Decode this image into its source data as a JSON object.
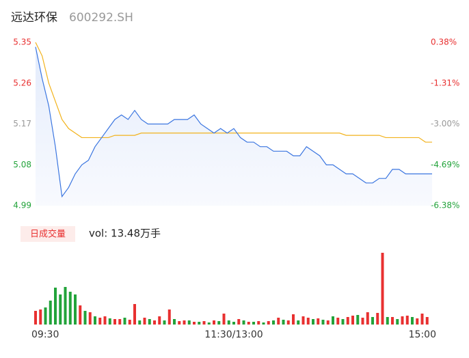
{
  "chart_data": [
    {
      "type": "line",
      "title": "远达环保",
      "subtitle": "600292.SH",
      "x": [
        0,
        4,
        8,
        12,
        16,
        20,
        24,
        28,
        32,
        36,
        40,
        44,
        48,
        52,
        56,
        60,
        64,
        68,
        72,
        76,
        80,
        84,
        88,
        92,
        96,
        100,
        104,
        108,
        112,
        116,
        120,
        124,
        128,
        132,
        136,
        140,
        144,
        148,
        152,
        156,
        160,
        164,
        168,
        172,
        176,
        180,
        184,
        188,
        192,
        196,
        200,
        204,
        208,
        212,
        216,
        220,
        224,
        228,
        232,
        236,
        240
      ],
      "xlim": [
        0,
        240
      ],
      "ylim": [
        4.99,
        5.35
      ],
      "yticks": [
        5.35,
        5.26,
        5.17,
        5.08,
        4.99
      ],
      "y2lim": [
        -6.38,
        0.38
      ],
      "y2ticks": [
        {
          "value": 0.38,
          "label": "0.38%"
        },
        {
          "value": -1.31,
          "label": "-1.31%"
        },
        {
          "value": -3.0,
          "label": "-3.00%"
        },
        {
          "value": -4.69,
          "label": "-4.69%"
        },
        {
          "value": -6.38,
          "label": "-6.38%"
        }
      ],
      "series": [
        {
          "color": "#3a75e0",
          "values": [
            5.34,
            5.27,
            5.21,
            5.12,
            5.01,
            5.03,
            5.06,
            5.08,
            5.09,
            5.12,
            5.14,
            5.16,
            5.18,
            5.19,
            5.18,
            5.2,
            5.18,
            5.17,
            5.17,
            5.17,
            5.17,
            5.18,
            5.18,
            5.18,
            5.19,
            5.17,
            5.16,
            5.15,
            5.16,
            5.15,
            5.16,
            5.14,
            5.13,
            5.13,
            5.12,
            5.12,
            5.11,
            5.11,
            5.11,
            5.1,
            5.1,
            5.12,
            5.11,
            5.1,
            5.08,
            5.08,
            5.07,
            5.06,
            5.06,
            5.05,
            5.04,
            5.04,
            5.05,
            5.05,
            5.07,
            5.07,
            5.06,
            5.06,
            5.06,
            5.06,
            5.06
          ]
        },
        {
          "color": "#f2b21a",
          "values": [
            5.35,
            5.32,
            5.26,
            5.22,
            5.18,
            5.16,
            5.15,
            5.14,
            5.14,
            5.14,
            5.14,
            5.14,
            5.145,
            5.145,
            5.145,
            5.145,
            5.15,
            5.15,
            5.15,
            5.15,
            5.15,
            5.15,
            5.15,
            5.15,
            5.15,
            5.15,
            5.15,
            5.15,
            5.15,
            5.15,
            5.15,
            5.15,
            5.15,
            5.15,
            5.15,
            5.15,
            5.15,
            5.15,
            5.15,
            5.15,
            5.15,
            5.15,
            5.15,
            5.15,
            5.15,
            5.15,
            5.15,
            5.145,
            5.145,
            5.145,
            5.145,
            5.145,
            5.145,
            5.14,
            5.14,
            5.14,
            5.14,
            5.14,
            5.14,
            5.13,
            5.13
          ]
        }
      ]
    },
    {
      "type": "bar",
      "title": "日成交量",
      "annotation": "vol: 13.48万手",
      "x": [
        0,
        3,
        6,
        9,
        12,
        15,
        18,
        21,
        24,
        27,
        30,
        33,
        36,
        39,
        42,
        45,
        48,
        51,
        54,
        57,
        60,
        63,
        66,
        69,
        72,
        75,
        78,
        81,
        84,
        87,
        90,
        93,
        96,
        99,
        102,
        105,
        108,
        111,
        114,
        117,
        120,
        123,
        126,
        129,
        132,
        135,
        138,
        141,
        144,
        147,
        150,
        153,
        156,
        159,
        162,
        165,
        168,
        171,
        174,
        177,
        180,
        183,
        186,
        189,
        192,
        195,
        198,
        201,
        204,
        207,
        210,
        213,
        216,
        219,
        222,
        225,
        228,
        231,
        234,
        237
      ],
      "xlim": [
        0,
        240
      ],
      "xticks": [
        {
          "value": 0,
          "label": "09:30"
        },
        {
          "value": 120,
          "label": "11:30/13:00"
        },
        {
          "value": 240,
          "label": "15:00"
        }
      ],
      "values": [
        1000,
        1100,
        1250,
        1750,
        2700,
        2200,
        2750,
        2400,
        2200,
        1400,
        1000,
        900,
        600,
        500,
        600,
        450,
        400,
        400,
        500,
        350,
        1500,
        300,
        500,
        400,
        300,
        600,
        300,
        1100,
        400,
        250,
        300,
        300,
        200,
        200,
        250,
        150,
        300,
        250,
        800,
        300,
        200,
        400,
        300,
        200,
        200,
        250,
        150,
        250,
        300,
        500,
        350,
        300,
        750,
        300,
        600,
        500,
        400,
        450,
        350,
        300,
        600,
        500,
        400,
        550,
        650,
        700,
        500,
        900,
        550,
        850,
        5250,
        550,
        550,
        400,
        600,
        650,
        550,
        450,
        800,
        550
      ],
      "colors": [
        "#e83030",
        "#e83030",
        "#22a33a",
        "#22a33a",
        "#22a33a",
        "#22a33a",
        "#22a33a",
        "#22a33a",
        "#22a33a",
        "#e83030",
        "#22a33a",
        "#e83030",
        "#22a33a",
        "#e83030",
        "#e83030",
        "#22a33a",
        "#e83030",
        "#e83030",
        "#22a33a",
        "#e83030",
        "#e83030",
        "#22a33a",
        "#e83030",
        "#22a33a",
        "#e83030",
        "#e83030",
        "#22a33a",
        "#e83030",
        "#22a33a",
        "#e83030",
        "#e83030",
        "#22a33a",
        "#e83030",
        "#22a33a",
        "#e83030",
        "#22a33a",
        "#e83030",
        "#22a33a",
        "#e83030",
        "#22a33a",
        "#22a33a",
        "#e83030",
        "#22a33a",
        "#e83030",
        "#22a33a",
        "#e83030",
        "#22a33a",
        "#e83030",
        "#22a33a",
        "#e83030",
        "#22a33a",
        "#e83030",
        "#e83030",
        "#22a33a",
        "#e83030",
        "#e83030",
        "#22a33a",
        "#e83030",
        "#22a33a",
        "#e83030",
        "#22a33a",
        "#e83030",
        "#22a33a",
        "#e83030",
        "#e83030",
        "#22a33a",
        "#e83030",
        "#e83030",
        "#22a33a",
        "#e83030",
        "#e83030",
        "#22a33a",
        "#e83030",
        "#22a33a",
        "#e83030",
        "#e83030",
        "#22a33a",
        "#e83030",
        "#e83030",
        "#e83030"
      ]
    }
  ]
}
